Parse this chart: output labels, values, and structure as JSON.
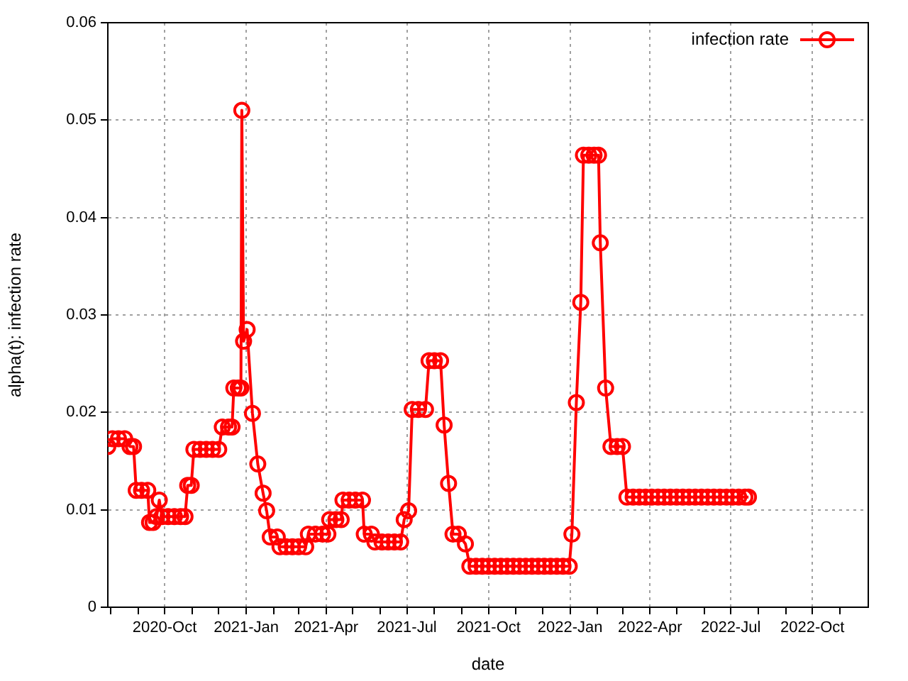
{
  "chart_data": {
    "type": "line",
    "xlabel": "date",
    "ylabel": "alpha(t): infection rate",
    "xlim": [
      "2020-07-29",
      "2022-12-03"
    ],
    "xticks": [
      {
        "value": "2020-08",
        "label": null
      },
      {
        "value": "2020-09",
        "label": null
      },
      {
        "value": "2020-10",
        "label": "2020-Oct"
      },
      {
        "value": "2020-11",
        "label": null
      },
      {
        "value": "2020-12",
        "label": null
      },
      {
        "value": "2021-01",
        "label": "2021-Jan"
      },
      {
        "value": "2021-02",
        "label": null
      },
      {
        "value": "2021-03",
        "label": null
      },
      {
        "value": "2021-04",
        "label": "2021-Apr"
      },
      {
        "value": "2021-05",
        "label": null
      },
      {
        "value": "2021-06",
        "label": null
      },
      {
        "value": "2021-07",
        "label": "2021-Jul"
      },
      {
        "value": "2021-08",
        "label": null
      },
      {
        "value": "2021-09",
        "label": null
      },
      {
        "value": "2021-10",
        "label": "2021-Oct"
      },
      {
        "value": "2021-11",
        "label": null
      },
      {
        "value": "2021-12",
        "label": null
      },
      {
        "value": "2022-01",
        "label": "2022-Jan"
      },
      {
        "value": "2022-02",
        "label": null
      },
      {
        "value": "2022-03",
        "label": null
      },
      {
        "value": "2022-04",
        "label": "2022-Apr"
      },
      {
        "value": "2022-05",
        "label": null
      },
      {
        "value": "2022-06",
        "label": null
      },
      {
        "value": "2022-07",
        "label": "2022-Jul"
      },
      {
        "value": "2022-08",
        "label": null
      },
      {
        "value": "2022-09",
        "label": null
      },
      {
        "value": "2022-10",
        "label": "2022-Oct"
      },
      {
        "value": "2022-11",
        "label": null
      }
    ],
    "ylim": [
      0,
      0.06
    ],
    "yticks": [
      0,
      0.01,
      0.02,
      0.03,
      0.04,
      0.05,
      0.06
    ],
    "grid": true,
    "legend": "top right",
    "marker": "circle",
    "line_style": "solid",
    "series": [
      {
        "name": "infection rate",
        "color": "#ff0000",
        "x": [
          "2020-07-29",
          "2020-08-03",
          "2020-08-10",
          "2020-08-17",
          "2020-08-23",
          "2020-08-27",
          "2020-08-30",
          "2020-09-05",
          "2020-09-12",
          "2020-09-14",
          "2020-09-18",
          "2020-09-22",
          "2020-09-25",
          "2020-09-28",
          "2020-10-05",
          "2020-10-12",
          "2020-10-19",
          "2020-10-24",
          "2020-10-27",
          "2020-10-31",
          "2020-11-03",
          "2020-11-10",
          "2020-11-17",
          "2020-11-24",
          "2020-12-01",
          "2020-12-05",
          "2020-12-12",
          "2020-12-16",
          "2020-12-18",
          "2020-12-23",
          "2020-12-26",
          "2020-12-27",
          "2020-12-29",
          "2021-01-02",
          "2021-01-08",
          "2021-01-14",
          "2021-01-20",
          "2021-01-24",
          "2021-01-28",
          "2021-02-05",
          "2021-02-08",
          "2021-02-15",
          "2021-02-22",
          "2021-03-01",
          "2021-03-09",
          "2021-03-12",
          "2021-03-20",
          "2021-03-28",
          "2021-04-03",
          "2021-04-05",
          "2021-04-12",
          "2021-04-18",
          "2021-04-20",
          "2021-04-27",
          "2021-05-04",
          "2021-05-12",
          "2021-05-14",
          "2021-05-22",
          "2021-05-26",
          "2021-06-03",
          "2021-06-10",
          "2021-06-17",
          "2021-06-24",
          "2021-06-28",
          "2021-07-03",
          "2021-07-07",
          "2021-07-14",
          "2021-07-22",
          "2021-07-26",
          "2021-08-01",
          "2021-08-08",
          "2021-08-12",
          "2021-08-17",
          "2021-08-22",
          "2021-08-28",
          "2021-09-05",
          "2021-09-10",
          "2021-09-17",
          "2021-09-24",
          "2021-10-01",
          "2021-10-08",
          "2021-10-15",
          "2021-10-22",
          "2021-10-29",
          "2021-11-05",
          "2021-11-12",
          "2021-11-19",
          "2021-11-26",
          "2021-12-03",
          "2021-12-10",
          "2021-12-17",
          "2021-12-24",
          "2021-12-31",
          "2022-01-03",
          "2022-01-08",
          "2022-01-13",
          "2022-01-16",
          "2022-01-22",
          "2022-01-28",
          "2022-02-02",
          "2022-02-04",
          "2022-02-10",
          "2022-02-16",
          "2022-02-23",
          "2022-03-01",
          "2022-03-06",
          "2022-03-13",
          "2022-03-20",
          "2022-03-27",
          "2022-04-03",
          "2022-04-10",
          "2022-04-17",
          "2022-04-24",
          "2022-05-01",
          "2022-05-08",
          "2022-05-15",
          "2022-05-22",
          "2022-05-29",
          "2022-06-05",
          "2022-06-12",
          "2022-06-19",
          "2022-06-26",
          "2022-07-03",
          "2022-07-10",
          "2022-07-17",
          "2022-07-21"
        ],
        "values": [
          0.0165,
          0.0173,
          0.0173,
          0.0173,
          0.0165,
          0.0165,
          0.012,
          0.012,
          0.012,
          0.0087,
          0.0087,
          0.0093,
          0.011,
          0.0093,
          0.0093,
          0.0093,
          0.0093,
          0.0093,
          0.0125,
          0.0125,
          0.0162,
          0.0162,
          0.0162,
          0.0162,
          0.0162,
          0.0185,
          0.0185,
          0.0185,
          0.0225,
          0.0225,
          0.0225,
          0.051,
          0.0273,
          0.0285,
          0.0199,
          0.0147,
          0.0117,
          0.0099,
          0.0072,
          0.0072,
          0.0062,
          0.0062,
          0.0062,
          0.0062,
          0.0062,
          0.0075,
          0.0075,
          0.0075,
          0.0075,
          0.009,
          0.009,
          0.009,
          0.011,
          0.011,
          0.011,
          0.011,
          0.0075,
          0.0075,
          0.0067,
          0.0067,
          0.0067,
          0.0067,
          0.0067,
          0.009,
          0.0099,
          0.0203,
          0.0203,
          0.0203,
          0.0253,
          0.0253,
          0.0253,
          0.0187,
          0.0127,
          0.0075,
          0.0075,
          0.0065,
          0.0042,
          0.0042,
          0.0042,
          0.0042,
          0.0042,
          0.0042,
          0.0042,
          0.0042,
          0.0042,
          0.0042,
          0.0042,
          0.0042,
          0.0042,
          0.0042,
          0.0042,
          0.0042,
          0.0042,
          0.0075,
          0.021,
          0.0313,
          0.0464,
          0.0464,
          0.0464,
          0.0464,
          0.0374,
          0.0225,
          0.0165,
          0.0165,
          0.0165,
          0.0113,
          0.0113,
          0.0113,
          0.0113,
          0.0113,
          0.0113,
          0.0113,
          0.0113,
          0.0113,
          0.0113,
          0.0113,
          0.0113,
          0.0113,
          0.0113,
          0.0113,
          0.0113,
          0.0113,
          0.0113,
          0.0113,
          0.0113,
          0.0113
        ]
      }
    ]
  }
}
